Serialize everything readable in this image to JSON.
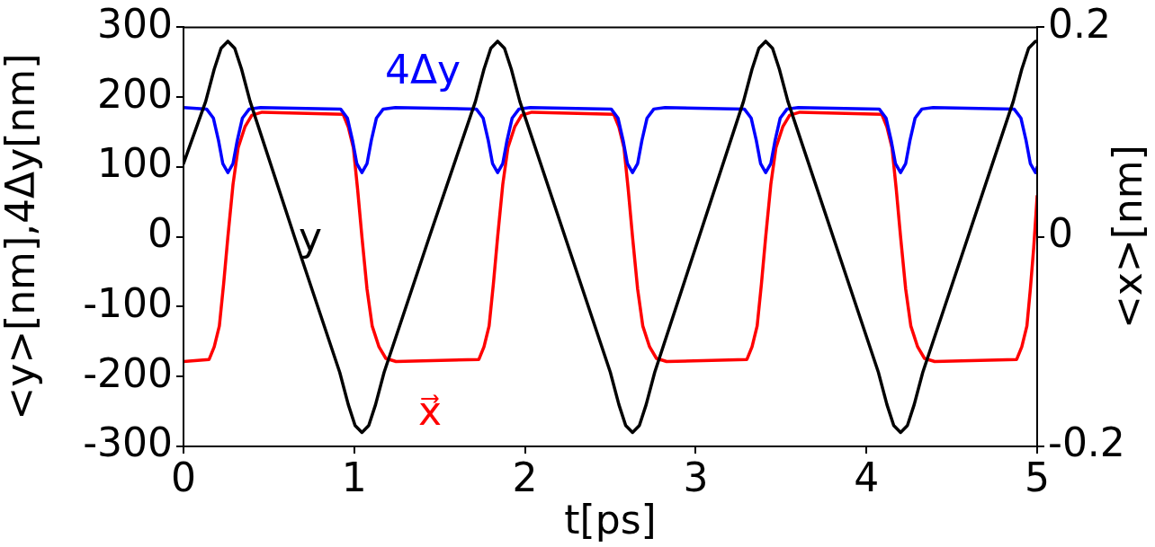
{
  "chart_data": {
    "type": "line",
    "xlabel": "t[ps]",
    "ylabel": "<y>[nm],4Δy[nm]",
    "y2label": "<x>[nm]",
    "xlim": [
      0,
      5
    ],
    "xticks": [
      0,
      1,
      2,
      3,
      4,
      5
    ],
    "ylim": [
      -300,
      300
    ],
    "yticks": [
      -300,
      -200,
      -100,
      0,
      100,
      200,
      300
    ],
    "y2lim": [
      -0.2,
      0.2
    ],
    "y2ticks": [
      -0.2,
      0,
      0.2
    ],
    "grid": false,
    "legend": false,
    "marker": "none",
    "line_style": "solid",
    "series": [
      {
        "name": "y",
        "color": "#000000",
        "x": [
          0,
          0.13,
          0.18,
          0.22,
          0.26,
          0.3,
          0.34,
          0.39,
          0.65,
          0.915,
          0.965,
          1.005,
          1.045,
          1.085,
          1.125,
          1.175,
          1.44,
          1.71,
          1.76,
          1.8,
          1.84,
          1.88,
          1.92,
          1.97,
          2.235,
          2.5,
          2.55,
          2.59,
          2.63,
          2.67,
          2.71,
          2.76,
          3.02,
          3.28,
          3.33,
          3.37,
          3.41,
          3.45,
          3.49,
          3.54,
          3.805,
          4.07,
          4.12,
          4.16,
          4.2,
          4.24,
          4.28,
          4.33,
          4.595,
          4.86,
          4.91,
          4.95,
          4.99,
          5
        ],
        "values": [
          105,
          194,
          240,
          270,
          280,
          270,
          240,
          194,
          0,
          -194,
          -240,
          -270,
          -280,
          -270,
          -240,
          -194,
          0,
          194,
          240,
          270,
          280,
          270,
          240,
          194,
          0,
          -194,
          -240,
          -270,
          -280,
          -270,
          -240,
          -194,
          0,
          194,
          240,
          270,
          280,
          270,
          240,
          194,
          0,
          -194,
          -240,
          -270,
          -280,
          -270,
          -240,
          -194,
          0,
          194,
          240,
          270,
          280,
          279
        ]
      },
      {
        "name": "4Δy",
        "color": "#0000ff",
        "x": [
          0,
          0.135,
          0.175,
          0.205,
          0.23,
          0.26,
          0.29,
          0.315,
          0.345,
          0.385,
          0.45,
          0.92,
          0.96,
          0.99,
          1.015,
          1.045,
          1.075,
          1.1,
          1.13,
          1.17,
          1.24,
          1.715,
          1.755,
          1.785,
          1.81,
          1.84,
          1.87,
          1.895,
          1.925,
          1.965,
          2.03,
          2.505,
          2.545,
          2.575,
          2.6,
          2.63,
          2.66,
          2.685,
          2.715,
          2.755,
          2.82,
          3.285,
          3.325,
          3.355,
          3.38,
          3.41,
          3.44,
          3.465,
          3.495,
          3.535,
          3.6,
          4.075,
          4.115,
          4.145,
          4.17,
          4.2,
          4.23,
          4.255,
          4.285,
          4.325,
          4.39,
          4.865,
          4.905,
          4.935,
          4.96,
          4.99,
          5
        ],
        "values": [
          185,
          183,
          170,
          138,
          105,
          92,
          105,
          138,
          170,
          183,
          185,
          183,
          170,
          138,
          105,
          92,
          105,
          138,
          170,
          183,
          185,
          183,
          170,
          138,
          105,
          92,
          105,
          138,
          170,
          183,
          185,
          183,
          170,
          138,
          105,
          92,
          105,
          138,
          170,
          183,
          185,
          183,
          170,
          138,
          105,
          92,
          105,
          138,
          170,
          183,
          185,
          183,
          170,
          138,
          105,
          92,
          105,
          138,
          170,
          183,
          185,
          183,
          170,
          138,
          105,
          92,
          100
        ]
      },
      {
        "name": "x⃗",
        "color": "#ff0000",
        "axis": "y2",
        "x": [
          0,
          0.15,
          0.18,
          0.21,
          0.235,
          0.26,
          0.29,
          0.32,
          0.36,
          0.4,
          0.46,
          0.935,
          0.965,
          0.995,
          1.02,
          1.045,
          1.075,
          1.105,
          1.145,
          1.185,
          1.245,
          1.73,
          1.76,
          1.79,
          1.815,
          1.84,
          1.87,
          1.9,
          1.94,
          1.98,
          2.04,
          2.52,
          2.55,
          2.58,
          2.605,
          2.63,
          2.66,
          2.69,
          2.73,
          2.77,
          2.83,
          3.3,
          3.33,
          3.36,
          3.385,
          3.41,
          3.44,
          3.47,
          3.51,
          3.55,
          3.61,
          4.09,
          4.12,
          4.15,
          4.175,
          4.2,
          4.23,
          4.26,
          4.3,
          4.34,
          4.4,
          4.88,
          4.91,
          4.94,
          4.96,
          4.98,
          5
        ],
        "values": [
          -0.119,
          -0.117,
          -0.105,
          -0.085,
          -0.045,
          0,
          0.05,
          0.085,
          0.105,
          0.116,
          0.119,
          0.117,
          0.105,
          0.085,
          0.045,
          0,
          -0.05,
          -0.085,
          -0.105,
          -0.116,
          -0.119,
          -0.117,
          -0.105,
          -0.085,
          -0.045,
          0,
          0.05,
          0.085,
          0.105,
          0.116,
          0.119,
          0.117,
          0.105,
          0.085,
          0.045,
          0,
          -0.05,
          -0.085,
          -0.105,
          -0.116,
          -0.119,
          -0.117,
          -0.105,
          -0.085,
          -0.045,
          0,
          0.05,
          0.085,
          0.105,
          0.116,
          0.119,
          0.117,
          0.105,
          0.085,
          0.045,
          0,
          -0.05,
          -0.085,
          -0.105,
          -0.116,
          -0.119,
          -0.117,
          -0.105,
          -0.085,
          -0.05,
          -0.01,
          0.039
        ]
      }
    ]
  }
}
